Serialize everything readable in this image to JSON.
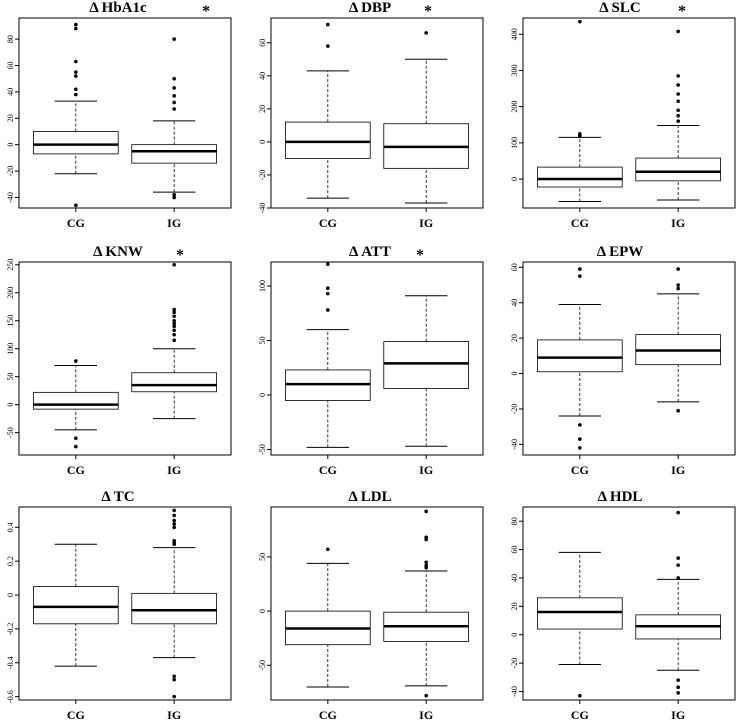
{
  "chart_data": [
    {
      "type": "box",
      "title": "Δ HbA1c",
      "marker": "*",
      "categories": [
        "CG",
        "IG"
      ],
      "ylim": [
        -48,
        96
      ],
      "yticks": [
        -40,
        -20,
        0,
        20,
        40,
        60,
        80
      ],
      "series": [
        {
          "name": "CG",
          "whisker_low": -22,
          "q1": -7,
          "median": 0,
          "q3": 10,
          "whisker_high": 33,
          "outliers": [
            -46,
            38,
            42,
            52,
            55,
            63,
            88,
            91
          ]
        },
        {
          "name": "IG",
          "whisker_low": -36,
          "q1": -14,
          "median": -5,
          "q3": 0,
          "whisker_high": 18,
          "outliers": [
            -40,
            -38,
            27,
            32,
            37,
            43,
            50,
            80
          ]
        }
      ]
    },
    {
      "type": "box",
      "title": "Δ DBP",
      "marker": "*",
      "categories": [
        "CG",
        "IG"
      ],
      "ylim": [
        -40,
        75
      ],
      "yticks": [
        -40,
        -20,
        0,
        20,
        40,
        60
      ],
      "series": [
        {
          "name": "CG",
          "whisker_low": -34,
          "q1": -10,
          "median": 0,
          "q3": 12,
          "whisker_high": 43,
          "outliers": [
            58,
            71
          ]
        },
        {
          "name": "IG",
          "whisker_low": -37,
          "q1": -16,
          "median": -3,
          "q3": 11,
          "whisker_high": 50,
          "outliers": [
            66
          ]
        }
      ]
    },
    {
      "type": "box",
      "title": "Δ SLC",
      "marker": "*",
      "categories": [
        "CG",
        "IG"
      ],
      "ylim": [
        -80,
        445
      ],
      "yticks": [
        0,
        100,
        200,
        300,
        400
      ],
      "series": [
        {
          "name": "CG",
          "whisker_low": -62,
          "q1": -22,
          "median": 0,
          "q3": 33,
          "whisker_high": 115,
          "outliers": [
            118,
            122,
            125,
            435
          ]
        },
        {
          "name": "IG",
          "whisker_low": -58,
          "q1": -5,
          "median": 20,
          "q3": 58,
          "whisker_high": 148,
          "outliers": [
            160,
            175,
            190,
            215,
            235,
            260,
            285,
            408
          ]
        }
      ]
    },
    {
      "type": "box",
      "title": "Δ KNW",
      "marker": "*",
      "categories": [
        "CG",
        "IG"
      ],
      "ylim": [
        -90,
        255
      ],
      "yticks": [
        -50,
        0,
        50,
        100,
        150,
        200,
        250
      ],
      "series": [
        {
          "name": "CG",
          "whisker_low": -45,
          "q1": -8,
          "median": 0,
          "q3": 22,
          "whisker_high": 70,
          "outliers": [
            -60,
            -75,
            78
          ]
        },
        {
          "name": "IG",
          "whisker_low": -25,
          "q1": 23,
          "median": 35,
          "q3": 57,
          "whisker_high": 100,
          "outliers": [
            115,
            125,
            133,
            140,
            145,
            150,
            158,
            165,
            170,
            250
          ]
        }
      ]
    },
    {
      "type": "box",
      "title": "Δ ATT",
      "marker": "*",
      "categories": [
        "CG",
        "IG"
      ],
      "ylim": [
        -55,
        122
      ],
      "yticks": [
        -50,
        0,
        50,
        100
      ],
      "series": [
        {
          "name": "CG",
          "whisker_low": -48,
          "q1": -5,
          "median": 10,
          "q3": 23,
          "whisker_high": 60,
          "outliers": [
            78,
            93,
            98,
            120
          ]
        },
        {
          "name": "IG",
          "whisker_low": -47,
          "q1": 6,
          "median": 29,
          "q3": 49,
          "whisker_high": 91,
          "outliers": []
        }
      ]
    },
    {
      "type": "box",
      "title": "Δ EPW",
      "marker": "",
      "categories": [
        "CG",
        "IG"
      ],
      "ylim": [
        -46,
        63
      ],
      "yticks": [
        -40,
        -20,
        0,
        20,
        40,
        60
      ],
      "series": [
        {
          "name": "CG",
          "whisker_low": -24,
          "q1": 1,
          "median": 9,
          "q3": 19,
          "whisker_high": 39,
          "outliers": [
            -29,
            -37,
            -42,
            55,
            59
          ]
        },
        {
          "name": "IG",
          "whisker_low": -16,
          "q1": 5,
          "median": 13,
          "q3": 22,
          "whisker_high": 45,
          "outliers": [
            -21,
            48,
            50,
            59
          ]
        }
      ]
    },
    {
      "type": "box",
      "title": "Δ TC",
      "marker": "",
      "categories": [
        "CG",
        "IG"
      ],
      "ylim": [
        -0.62,
        0.52
      ],
      "yticks": [
        -0.6,
        -0.4,
        -0.2,
        0.0,
        0.2,
        0.4
      ],
      "series": [
        {
          "name": "CG",
          "whisker_low": -0.42,
          "q1": -0.17,
          "median": -0.07,
          "q3": 0.05,
          "whisker_high": 0.3,
          "outliers": []
        },
        {
          "name": "IG",
          "whisker_low": -0.37,
          "q1": -0.17,
          "median": -0.09,
          "q3": 0.01,
          "whisker_high": 0.28,
          "outliers": [
            -0.6,
            -0.5,
            -0.48,
            0.3,
            0.31,
            0.32,
            0.4,
            0.42,
            0.44,
            0.47,
            0.5
          ]
        }
      ]
    },
    {
      "type": "box",
      "title": "Δ LDL",
      "marker": "",
      "categories": [
        "CG",
        "IG"
      ],
      "ylim": [
        -82,
        96
      ],
      "yticks": [
        -50,
        0,
        50
      ],
      "series": [
        {
          "name": "CG",
          "whisker_low": -70,
          "q1": -31,
          "median": -16,
          "q3": 0,
          "whisker_high": 44,
          "outliers": [
            57
          ]
        },
        {
          "name": "IG",
          "whisker_low": -69,
          "q1": -28,
          "median": -14,
          "q3": -1,
          "whisker_high": 37,
          "outliers": [
            -78,
            40,
            42,
            45,
            66,
            68,
            92
          ]
        }
      ]
    },
    {
      "type": "box",
      "title": "Δ HDL",
      "marker": "",
      "categories": [
        "CG",
        "IG"
      ],
      "ylim": [
        -46,
        90
      ],
      "yticks": [
        -40,
        -20,
        0,
        20,
        40,
        60,
        80
      ],
      "series": [
        {
          "name": "CG",
          "whisker_low": -21,
          "q1": 4,
          "median": 16,
          "q3": 26,
          "whisker_high": 58,
          "outliers": [
            -43
          ]
        },
        {
          "name": "IG",
          "whisker_low": -25,
          "q1": -3,
          "median": 6,
          "q3": 14,
          "whisker_high": 39,
          "outliers": [
            -32,
            -37,
            -41,
            40,
            49,
            54,
            86
          ]
        }
      ]
    }
  ]
}
